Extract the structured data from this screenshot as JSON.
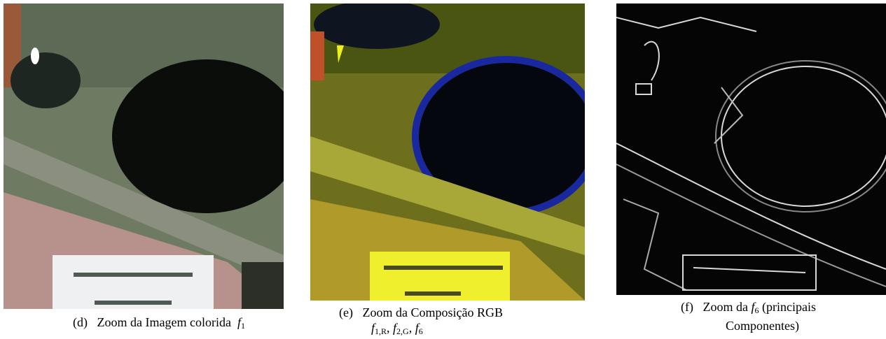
{
  "panels": [
    {
      "label": "(d)",
      "lines": [
        [
          "Zoom da Imagem colorida",
          "f",
          "1"
        ]
      ]
    },
    {
      "label": "(e)",
      "lines": [
        [
          "Zoom da Composição RGB"
        ],
        [
          "f",
          "1,R",
          ", ",
          "f",
          "2,G",
          ", ",
          "f",
          "6"
        ]
      ]
    },
    {
      "label": "(f)",
      "lines": [
        [
          "Zoom da",
          "f",
          "6",
          "(principais"
        ],
        [
          "Componentes)"
        ]
      ]
    }
  ]
}
